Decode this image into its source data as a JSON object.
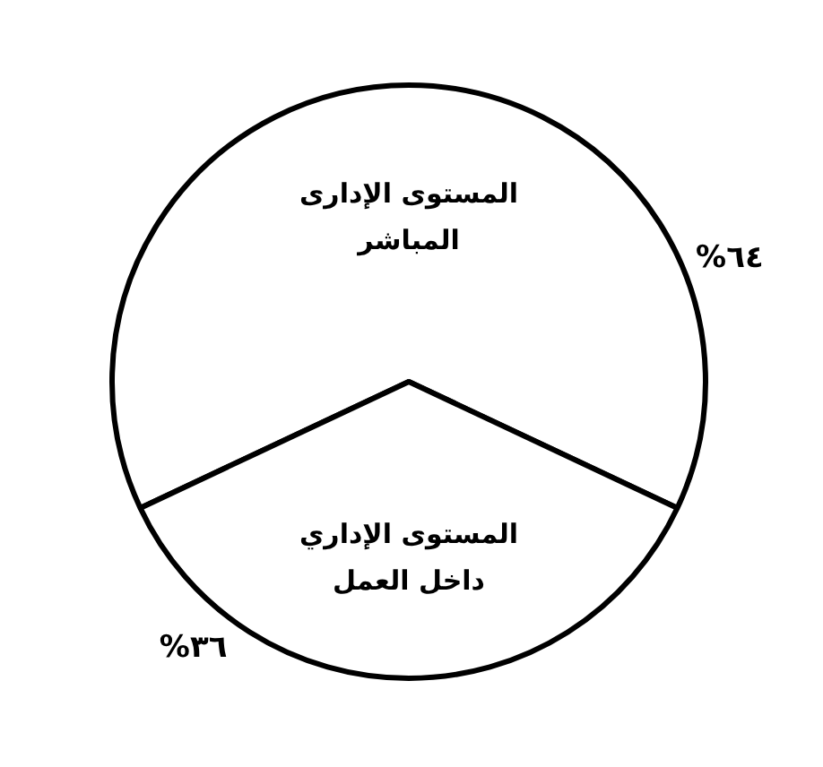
{
  "chart_data": {
    "type": "pie",
    "categories": [
      "المستوى الإدارى المباشر",
      "المستوى الإداري داخل العمل"
    ],
    "values": [
      64,
      36
    ],
    "value_labels": [
      "%٦٤",
      "%٣٦"
    ],
    "colors": [
      "#ffffff",
      "#ffffff"
    ],
    "legend": false
  }
}
